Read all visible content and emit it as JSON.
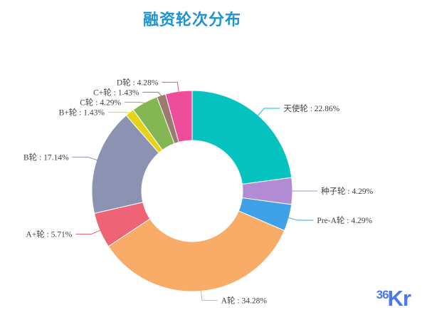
{
  "page": {
    "background": "#ffffff"
  },
  "title": {
    "text": "融资轮次分布",
    "color": "#1e93d2"
  },
  "chart_data": {
    "type": "pie",
    "title": "融资轮次分布",
    "donut": true,
    "start_angle_deg": 0,
    "direction": "clockwise",
    "label_format": "{name} : {percent}%",
    "label_color": "#404040",
    "slice_border_color": "#ffffff",
    "slices": [
      {
        "name": "天使轮",
        "percent": 22.86,
        "color": "#06c3bf"
      },
      {
        "name": "种子轮",
        "percent": 4.29,
        "color": "#b18cd4"
      },
      {
        "name": "Pre-A轮",
        "percent": 4.29,
        "color": "#3fa2e8"
      },
      {
        "name": "A轮",
        "percent": 34.28,
        "color": "#f9ab68"
      },
      {
        "name": "A+轮",
        "percent": 5.71,
        "color": "#ee6375"
      },
      {
        "name": "B轮",
        "percent": 17.14,
        "color": "#8c93b2"
      },
      {
        "name": "B+轮",
        "percent": 1.43,
        "color": "#e4d318"
      },
      {
        "name": "C轮",
        "percent": 4.29,
        "color": "#83b754"
      },
      {
        "name": "C+轮",
        "percent": 1.43,
        "color": "#9d7a70"
      },
      {
        "name": "D轮",
        "percent": 4.28,
        "color": "#ee4d9b"
      }
    ]
  },
  "logo": {
    "prefix": "36",
    "suffix": "Kr",
    "color": "#4b79e8"
  }
}
